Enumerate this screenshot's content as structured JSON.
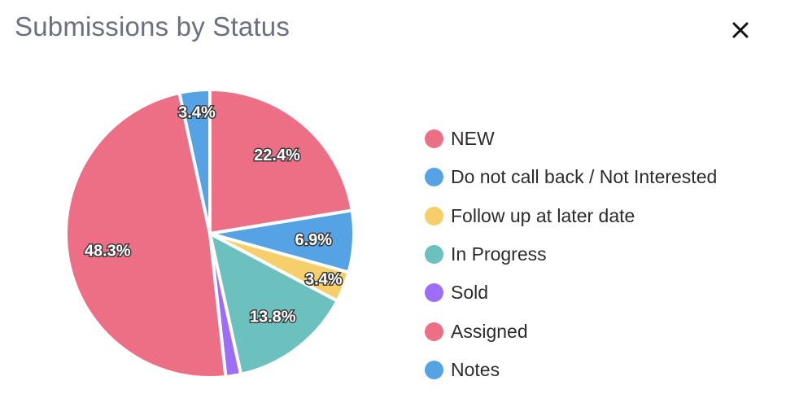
{
  "dialog": {
    "title": "Submissions by Status",
    "close_icon": "close-icon"
  },
  "chart_data": {
    "type": "pie",
    "title": "Submissions by Status",
    "legend_position": "right",
    "series": [
      {
        "name": "NEW",
        "value": 22.4,
        "label": "22.4%",
        "color": "#ec6f85"
      },
      {
        "name": "Do not call back / Not Interested",
        "value": 6.9,
        "label": "6.9%",
        "color": "#55a2e5"
      },
      {
        "name": "Follow up at later date",
        "value": 3.4,
        "label": "3.4%",
        "color": "#f6cf6a"
      },
      {
        "name": "In Progress",
        "value": 13.8,
        "label": "13.8%",
        "color": "#6cc0bd"
      },
      {
        "name": "Sold",
        "value": 1.7,
        "label": "",
        "color": "#9d6ef5"
      },
      {
        "name": "Assigned",
        "value": 48.3,
        "label": "48.3%",
        "color": "#ec6f85"
      },
      {
        "name": "Notes",
        "value": 3.4,
        "label": "3.4%",
        "color": "#55a2e5"
      }
    ]
  }
}
